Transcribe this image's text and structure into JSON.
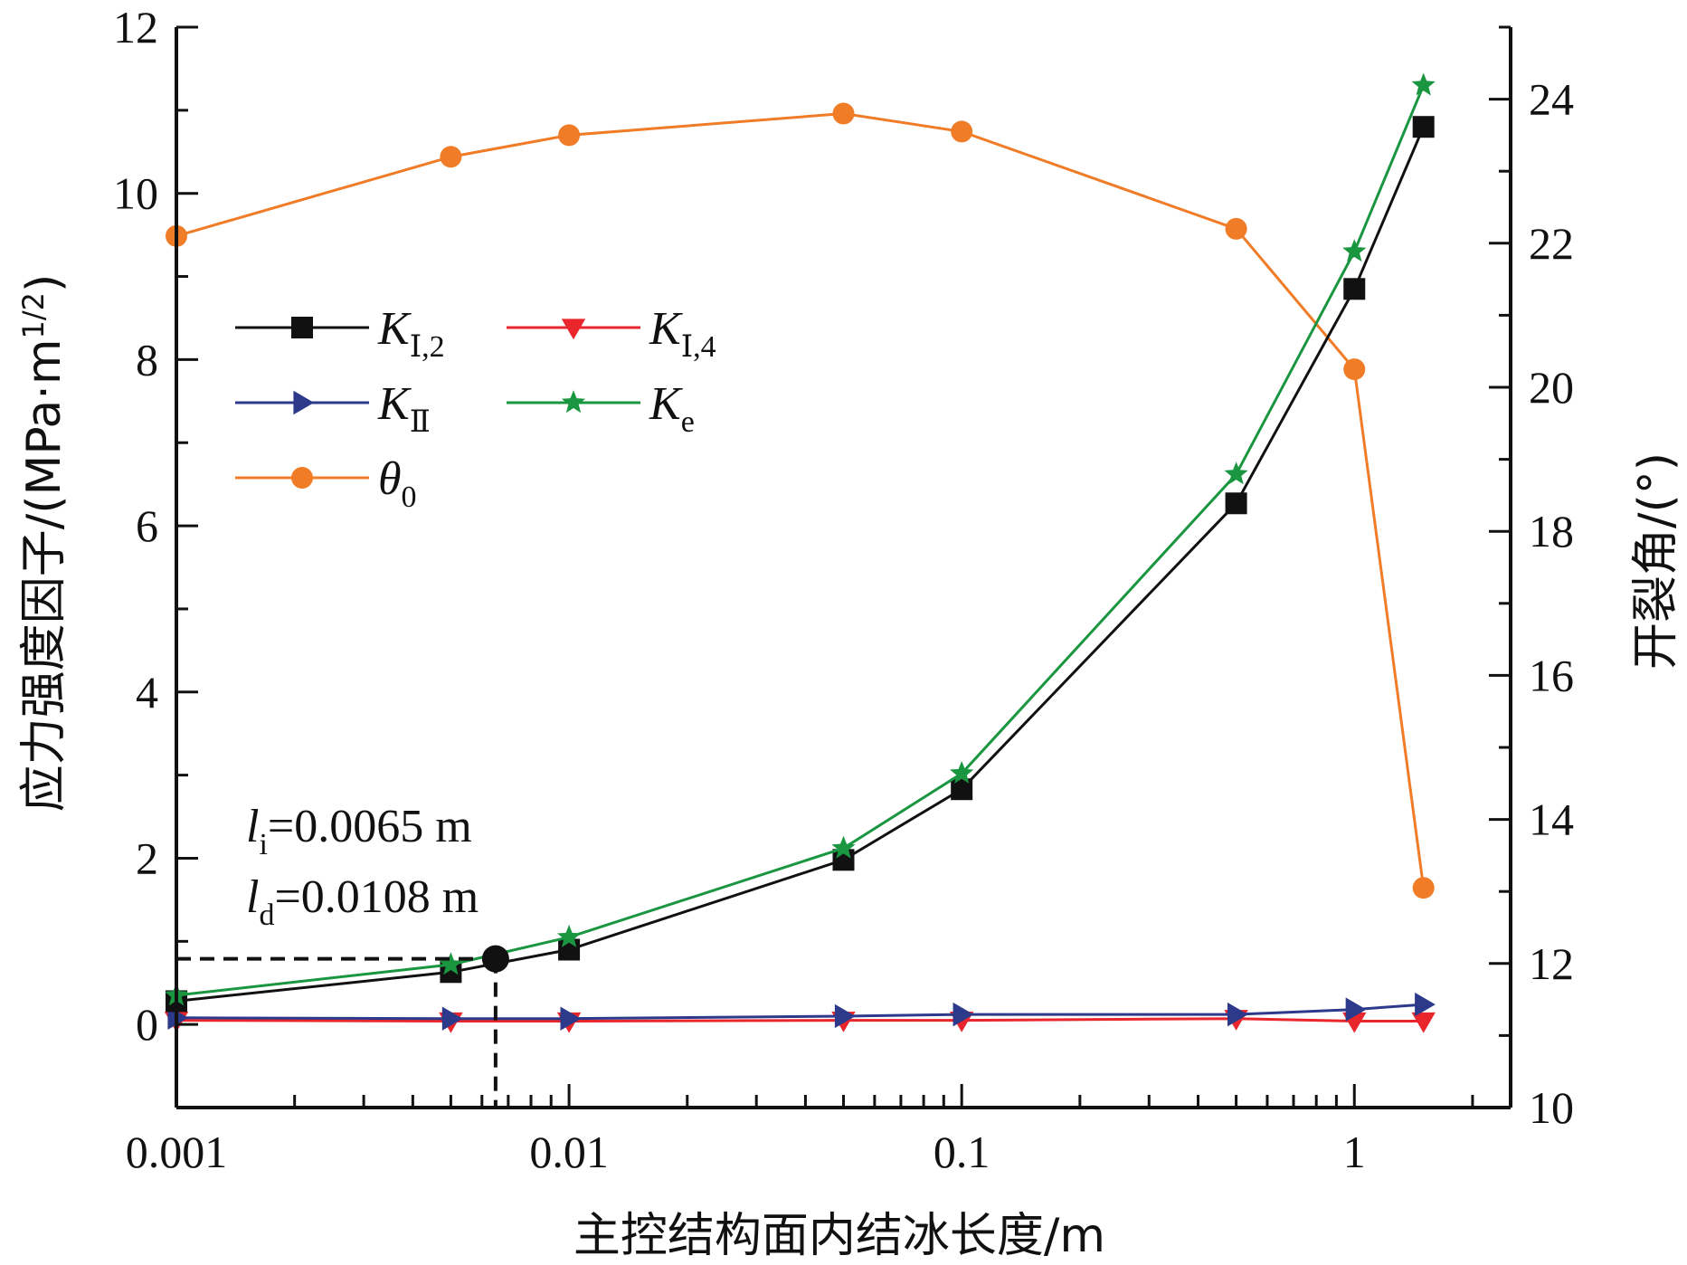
{
  "chart_data": {
    "type": "line",
    "xscale": "log",
    "xlabel": "主控结构面内结冰长度/m",
    "ylabel": "应力强度因子/(MPa·m",
    "ylabel_sup": "1/2",
    "ylabel_end": ")",
    "y2label": "开裂角/(°)",
    "xlim": [
      0.001,
      2.5
    ],
    "ylim": [
      -1,
      12
    ],
    "y2lim": [
      10,
      25
    ],
    "xticks": [
      {
        "value": 0.001,
        "label": "0.001"
      },
      {
        "value": 0.01,
        "label": "0.01"
      },
      {
        "value": 0.1,
        "label": "0.1"
      },
      {
        "value": 1,
        "label": "1"
      }
    ],
    "yticks": [
      {
        "value": 0,
        "label": "0"
      },
      {
        "value": 2,
        "label": "2"
      },
      {
        "value": 4,
        "label": "4"
      },
      {
        "value": 6,
        "label": "6"
      },
      {
        "value": 8,
        "label": "8"
      },
      {
        "value": 10,
        "label": "10"
      },
      {
        "value": 12,
        "label": "12"
      }
    ],
    "y2ticks": [
      {
        "value": 10,
        "label": "10"
      },
      {
        "value": 12,
        "label": "12"
      },
      {
        "value": 14,
        "label": "14"
      },
      {
        "value": 16,
        "label": "16"
      },
      {
        "value": 18,
        "label": "18"
      },
      {
        "value": 20,
        "label": "20"
      },
      {
        "value": 22,
        "label": "22"
      },
      {
        "value": 24,
        "label": "24"
      }
    ],
    "x": [
      0.001,
      0.005,
      0.01,
      0.05,
      0.1,
      0.5,
      1,
      1.5
    ],
    "series": [
      {
        "key": "KI2",
        "name": "K",
        "sub": "Ⅰ,2",
        "axis": "left",
        "color": "#111111",
        "marker": "square",
        "values": [
          0.28,
          0.63,
          0.9,
          1.98,
          2.83,
          6.27,
          8.85,
          10.8
        ]
      },
      {
        "key": "KI4",
        "name": "K",
        "sub": "Ⅰ,4",
        "axis": "left",
        "color": "#e8262b",
        "marker": "triangle-down",
        "values": [
          0.05,
          0.04,
          0.04,
          0.05,
          0.05,
          0.07,
          0.04,
          0.04
        ]
      },
      {
        "key": "KII",
        "name": "K",
        "sub": "Ⅱ",
        "axis": "left",
        "color": "#2d3a8c",
        "marker": "triangle-right",
        "values": [
          0.08,
          0.07,
          0.07,
          0.1,
          0.12,
          0.12,
          0.18,
          0.24
        ]
      },
      {
        "key": "Ke",
        "name": "K",
        "sub": "e",
        "axis": "left",
        "color": "#1a9641",
        "marker": "star",
        "values": [
          0.35,
          0.72,
          1.05,
          2.12,
          3.02,
          6.62,
          9.3,
          11.3
        ]
      },
      {
        "key": "theta0",
        "name": "θ",
        "sub": "0",
        "axis": "right",
        "color": "#f07c28",
        "marker": "circle",
        "values": [
          22.1,
          23.2,
          23.5,
          23.8,
          23.55,
          22.2,
          20.25,
          13.05
        ]
      }
    ],
    "annotation": {
      "point": {
        "x": 0.0065,
        "y": 0.79
      },
      "line1_var": "l",
      "line1_sub": "i",
      "line1_val": "=0.0065 m",
      "line2_var": "l",
      "line2_sub": "d",
      "line2_val": "=0.0108 m"
    }
  }
}
